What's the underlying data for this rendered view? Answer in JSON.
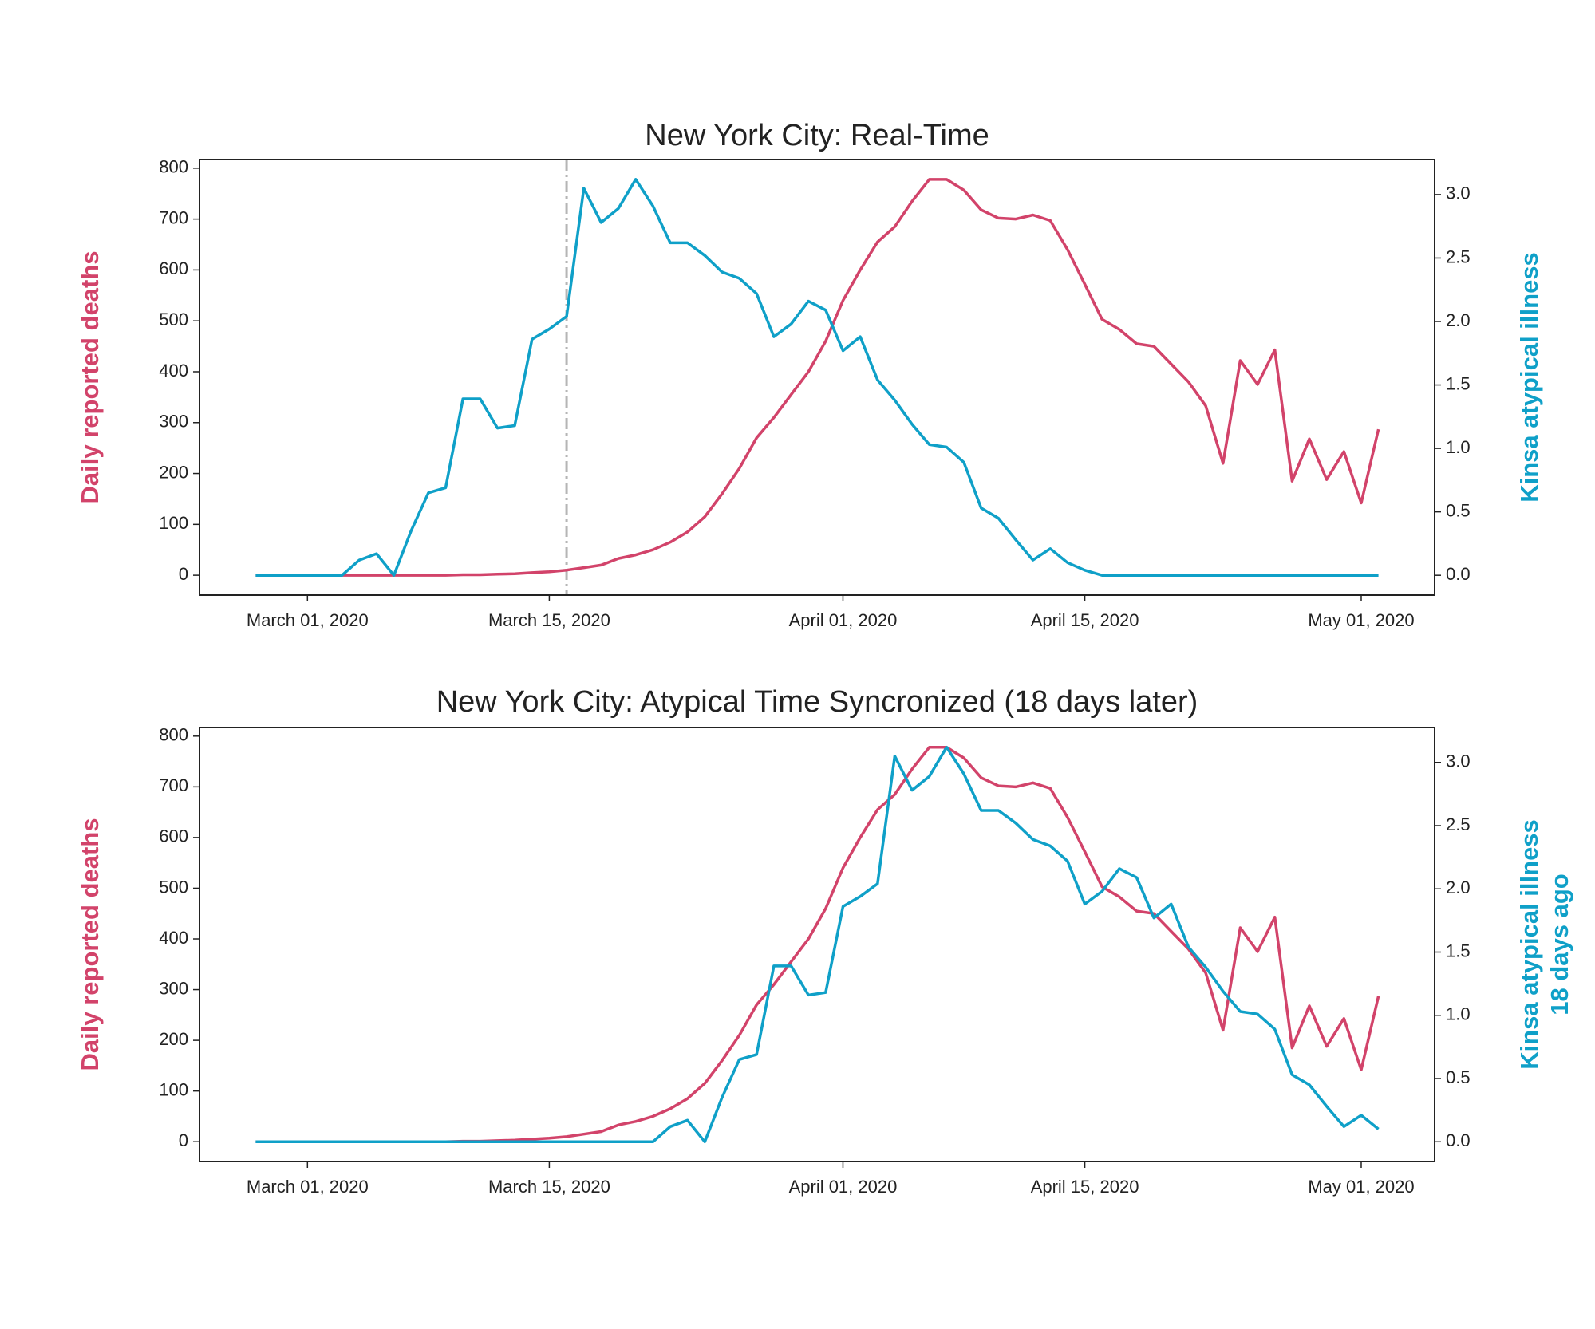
{
  "chart_data": [
    {
      "type": "line",
      "title": "New York City: Real-Time",
      "ylabel": "Daily reported deaths",
      "y2label": [
        "Kinsa atypical illness"
      ],
      "x": [
        "2020-02-27",
        "2020-02-28",
        "2020-02-29",
        "2020-03-01",
        "2020-03-02",
        "2020-03-03",
        "2020-03-04",
        "2020-03-05",
        "2020-03-06",
        "2020-03-07",
        "2020-03-08",
        "2020-03-09",
        "2020-03-10",
        "2020-03-11",
        "2020-03-12",
        "2020-03-13",
        "2020-03-14",
        "2020-03-15",
        "2020-03-16",
        "2020-03-17",
        "2020-03-18",
        "2020-03-19",
        "2020-03-20",
        "2020-03-21",
        "2020-03-22",
        "2020-03-23",
        "2020-03-24",
        "2020-03-25",
        "2020-03-26",
        "2020-03-27",
        "2020-03-28",
        "2020-03-29",
        "2020-03-30",
        "2020-03-31",
        "2020-04-01",
        "2020-04-02",
        "2020-04-03",
        "2020-04-04",
        "2020-04-05",
        "2020-04-06",
        "2020-04-07",
        "2020-04-08",
        "2020-04-09",
        "2020-04-10",
        "2020-04-11",
        "2020-04-12",
        "2020-04-13",
        "2020-04-14",
        "2020-04-15",
        "2020-04-16",
        "2020-04-17",
        "2020-04-18",
        "2020-04-19",
        "2020-04-20",
        "2020-04-21",
        "2020-04-22",
        "2020-04-23",
        "2020-04-24",
        "2020-04-25",
        "2020-04-26",
        "2020-04-27",
        "2020-04-28",
        "2020-04-29",
        "2020-04-30",
        "2020-05-01",
        "2020-05-02"
      ],
      "series": [
        {
          "color": "#d2436a",
          "values": [
            0,
            0,
            0,
            0,
            0,
            0,
            0,
            0,
            0,
            0,
            0,
            0,
            1,
            1,
            2,
            3,
            5,
            7,
            10,
            15,
            20,
            33,
            40,
            50,
            65,
            85,
            115,
            160,
            210,
            270,
            310,
            355,
            400,
            460,
            540,
            600,
            655,
            685,
            735,
            778,
            778,
            757,
            718,
            702,
            700,
            708,
            697,
            640,
            572,
            503,
            483,
            455,
            450,
            415,
            380,
            333,
            220,
            422,
            375,
            443,
            185,
            268,
            188,
            243,
            142,
            287
          ]
        },
        {
          "color": "#0fa0c8",
          "axis": "y2",
          "values": [
            0,
            0,
            0,
            0,
            0,
            0,
            0.12,
            0.17,
            0,
            0.35,
            0.65,
            0.69,
            1.39,
            1.39,
            1.16,
            1.18,
            1.86,
            1.94,
            2.04,
            3.05,
            2.78,
            2.89,
            3.12,
            2.91,
            2.62,
            2.62,
            2.52,
            2.39,
            2.34,
            2.22,
            1.88,
            1.98,
            2.16,
            2.09,
            1.77,
            1.88,
            1.54,
            1.38,
            1.19,
            1.03,
            1.01,
            0.89,
            0.53,
            0.45,
            0.28,
            0.12,
            0.21,
            0.1,
            0.04,
            0,
            0,
            0,
            0,
            0,
            0,
            0,
            0,
            0,
            0,
            0,
            0,
            0,
            0,
            0,
            0,
            0
          ]
        }
      ],
      "vline": {
        "x": "2020-03-16",
        "color": "#b5b5b5"
      },
      "xlim": [
        "2020-02-23T18:00Z",
        "2020-05-05T06:00Z"
      ],
      "xticks": [
        {
          "value": "2020-03-01",
          "label": "March 01, 2020"
        },
        {
          "value": "2020-03-15",
          "label": "March 15, 2020"
        },
        {
          "value": "2020-04-01",
          "label": "April 01, 2020"
        },
        {
          "value": "2020-04-15",
          "label": "April 15, 2020"
        },
        {
          "value": "2020-05-01",
          "label": "May 01, 2020"
        }
      ],
      "ylim": [
        -39,
        817
      ],
      "yticks": [
        0,
        100,
        200,
        300,
        400,
        500,
        600,
        700,
        800
      ],
      "y2lim": [
        -0.156,
        3.276
      ],
      "y2ticks": [
        {
          "value": 0,
          "label": "0.0"
        },
        {
          "value": 0.5,
          "label": "0.5"
        },
        {
          "value": 1,
          "label": "1.0"
        },
        {
          "value": 1.5,
          "label": "1.5"
        },
        {
          "value": 2,
          "label": "2.0"
        },
        {
          "value": 2.5,
          "label": "2.5"
        },
        {
          "value": 3,
          "label": "3.0"
        }
      ]
    },
    {
      "type": "line",
      "title": "New York City: Atypical Time Syncronized (18 days later)",
      "ylabel": "Daily reported deaths",
      "y2label": [
        "Kinsa atypical illness",
        "18 days ago"
      ],
      "x": [
        "2020-02-27",
        "2020-02-28",
        "2020-02-29",
        "2020-03-01",
        "2020-03-02",
        "2020-03-03",
        "2020-03-04",
        "2020-03-05",
        "2020-03-06",
        "2020-03-07",
        "2020-03-08",
        "2020-03-09",
        "2020-03-10",
        "2020-03-11",
        "2020-03-12",
        "2020-03-13",
        "2020-03-14",
        "2020-03-15",
        "2020-03-16",
        "2020-03-17",
        "2020-03-18",
        "2020-03-19",
        "2020-03-20",
        "2020-03-21",
        "2020-03-22",
        "2020-03-23",
        "2020-03-24",
        "2020-03-25",
        "2020-03-26",
        "2020-03-27",
        "2020-03-28",
        "2020-03-29",
        "2020-03-30",
        "2020-03-31",
        "2020-04-01",
        "2020-04-02",
        "2020-04-03",
        "2020-04-04",
        "2020-04-05",
        "2020-04-06",
        "2020-04-07",
        "2020-04-08",
        "2020-04-09",
        "2020-04-10",
        "2020-04-11",
        "2020-04-12",
        "2020-04-13",
        "2020-04-14",
        "2020-04-15",
        "2020-04-16",
        "2020-04-17",
        "2020-04-18",
        "2020-04-19",
        "2020-04-20",
        "2020-04-21",
        "2020-04-22",
        "2020-04-23",
        "2020-04-24",
        "2020-04-25",
        "2020-04-26",
        "2020-04-27",
        "2020-04-28",
        "2020-04-29",
        "2020-04-30",
        "2020-05-01",
        "2020-05-02"
      ],
      "series": [
        {
          "color": "#d2436a",
          "values": [
            0,
            0,
            0,
            0,
            0,
            0,
            0,
            0,
            0,
            0,
            0,
            0,
            1,
            1,
            2,
            3,
            5,
            7,
            10,
            15,
            20,
            33,
            40,
            50,
            65,
            85,
            115,
            160,
            210,
            270,
            310,
            355,
            400,
            460,
            540,
            600,
            655,
            685,
            735,
            778,
            778,
            757,
            718,
            702,
            700,
            708,
            697,
            640,
            572,
            503,
            483,
            455,
            450,
            415,
            380,
            333,
            220,
            422,
            375,
            443,
            185,
            268,
            188,
            243,
            142,
            287
          ]
        },
        {
          "color": "#0fa0c8",
          "axis": "y2",
          "values": [
            0,
            0,
            0,
            0,
            0,
            0,
            0,
            0,
            0,
            0,
            0,
            0,
            0,
            0,
            0,
            0,
            0,
            0,
            0,
            0,
            0,
            0,
            0,
            0,
            0.12,
            0.17,
            0,
            0.35,
            0.65,
            0.69,
            1.39,
            1.39,
            1.16,
            1.18,
            1.86,
            1.94,
            2.04,
            3.05,
            2.78,
            2.89,
            3.12,
            2.91,
            2.62,
            2.62,
            2.52,
            2.39,
            2.34,
            2.22,
            1.88,
            1.98,
            2.16,
            2.09,
            1.77,
            1.88,
            1.54,
            1.38,
            1.19,
            1.03,
            1.01,
            0.89,
            0.53,
            0.45,
            0.28,
            0.12,
            0.21,
            0.1
          ]
        }
      ],
      "xlim": [
        "2020-02-23T18:00Z",
        "2020-05-05T06:00Z"
      ],
      "xticks": [
        {
          "value": "2020-03-01",
          "label": "March 01, 2020"
        },
        {
          "value": "2020-03-15",
          "label": "March 15, 2020"
        },
        {
          "value": "2020-04-01",
          "label": "April 01, 2020"
        },
        {
          "value": "2020-04-15",
          "label": "April 15, 2020"
        },
        {
          "value": "2020-05-01",
          "label": "May 01, 2020"
        }
      ],
      "ylim": [
        -39,
        817
      ],
      "yticks": [
        0,
        100,
        200,
        300,
        400,
        500,
        600,
        700,
        800
      ],
      "y2lim": [
        -0.156,
        3.276
      ],
      "y2ticks": [
        {
          "value": 0,
          "label": "0.0"
        },
        {
          "value": 0.5,
          "label": "0.5"
        },
        {
          "value": 1,
          "label": "1.0"
        },
        {
          "value": 1.5,
          "label": "1.5"
        },
        {
          "value": 2,
          "label": "2.0"
        },
        {
          "value": 2.5,
          "label": "2.5"
        },
        {
          "value": 3,
          "label": "3.0"
        }
      ]
    }
  ]
}
